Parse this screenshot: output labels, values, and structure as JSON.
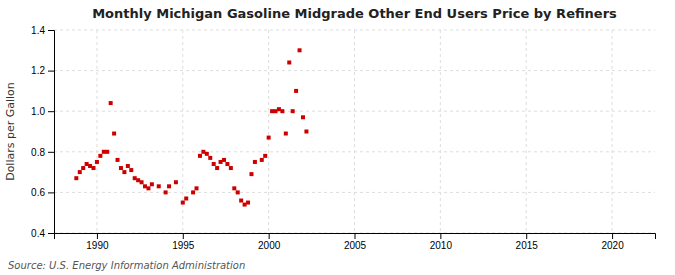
{
  "chart_data": {
    "type": "scatter",
    "title": "Monthly Michigan Gasoline Midgrade Other End Users Price by Refiners",
    "ylabel": "Dollars per Gallon",
    "source": "Source: U.S. Energy Information Administration",
    "color": "#cc0000",
    "marker": "square",
    "grid": true,
    "xlim": [
      1987.5,
      2022.5
    ],
    "ylim": [
      0.4,
      1.4
    ],
    "xticks": [
      1990,
      1995,
      2000,
      2005,
      2010,
      2015,
      2020
    ],
    "yticks": [
      0.4,
      0.6,
      0.8,
      {
        "value": 1.0,
        "label": "1.0"
      },
      1.2,
      1.4
    ],
    "x": [
      1988.8,
      1989.0,
      1989.2,
      1989.4,
      1989.6,
      1989.8,
      1990.0,
      1990.2,
      1990.4,
      1990.6,
      1990.8,
      1991.0,
      1991.2,
      1991.4,
      1991.6,
      1991.8,
      1992.0,
      1992.2,
      1992.4,
      1992.6,
      1992.8,
      1993.0,
      1993.2,
      1993.6,
      1994.0,
      1994.2,
      1994.6,
      1995.0,
      1995.2,
      1995.6,
      1995.8,
      1996.0,
      1996.2,
      1996.4,
      1996.6,
      1996.8,
      1997.0,
      1997.2,
      1997.4,
      1997.6,
      1997.8,
      1998.0,
      1998.2,
      1998.4,
      1998.6,
      1998.8,
      1999.0,
      1999.2,
      1999.6,
      1999.8,
      2000.0,
      2000.2,
      2000.4,
      2000.6,
      2000.8,
      2001.0,
      2001.2,
      2001.4,
      2001.6,
      2001.8,
      2002.0,
      2002.2
    ],
    "values": [
      0.67,
      0.7,
      0.72,
      0.74,
      0.73,
      0.72,
      0.75,
      0.78,
      0.8,
      0.8,
      1.04,
      0.89,
      0.76,
      0.72,
      0.7,
      0.73,
      0.71,
      0.67,
      0.66,
      0.65,
      0.63,
      0.62,
      0.64,
      0.63,
      0.6,
      0.63,
      0.65,
      0.55,
      0.57,
      0.6,
      0.62,
      0.78,
      0.8,
      0.79,
      0.77,
      0.74,
      0.72,
      0.75,
      0.76,
      0.74,
      0.72,
      0.62,
      0.6,
      0.56,
      0.54,
      0.55,
      0.69,
      0.75,
      0.76,
      0.78,
      0.87,
      1.0,
      1.0,
      1.01,
      1.0,
      0.89,
      1.24,
      1.0,
      1.1,
      1.3,
      0.97,
      0.9
    ]
  }
}
